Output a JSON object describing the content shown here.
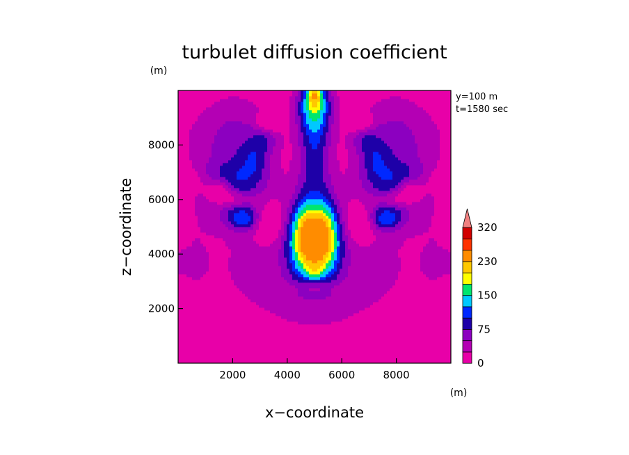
{
  "chart_data": {
    "type": "heatmap",
    "title": "turbulet diffusion coefficient",
    "xlabel": "x−coordinate",
    "ylabel": "z−coordinate",
    "x_unit": "(m)",
    "y_unit": "(m)",
    "annotations": [
      "y=100  m",
      "t=1580 sec"
    ],
    "xlim": [
      0,
      10000
    ],
    "ylim": [
      0,
      10000
    ],
    "x_ticks": [
      2000,
      4000,
      6000,
      8000
    ],
    "x_tick_labels": [
      "2000",
      "4000",
      "6000",
      "8000"
    ],
    "y_ticks": [
      2000,
      4000,
      6000,
      8000
    ],
    "y_tick_labels": [
      "2000",
      "4000",
      "6000",
      "8000"
    ],
    "colorbar": {
      "levels": [
        0,
        25,
        50,
        75,
        100,
        125,
        150,
        175,
        200,
        230,
        260,
        290,
        320
      ],
      "colors": [
        "#e800a8",
        "#b400b4",
        "#8c00c0",
        "#1e00a8",
        "#0028ff",
        "#00c8ff",
        "#00e66e",
        "#ffff00",
        "#ffc800",
        "#ff8c00",
        "#ff3200",
        "#d20000"
      ],
      "extend_color": "#f08080",
      "tick_labels": [
        {
          "value": 0,
          "label": "0"
        },
        {
          "value": 75,
          "label": "75"
        },
        {
          "value": 150,
          "label": "150"
        },
        {
          "value": 230,
          "label": "230"
        },
        {
          "value": 320,
          "label": "320"
        }
      ]
    },
    "field_peak_value": 250,
    "field_peak_location": [
      5000,
      9800
    ]
  }
}
